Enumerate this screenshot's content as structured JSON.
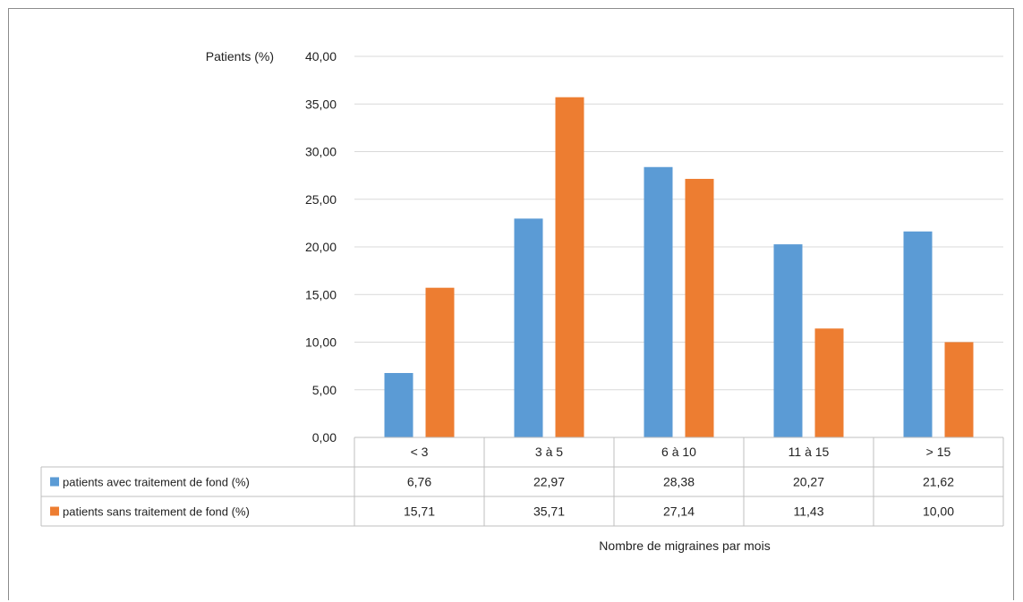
{
  "chart_data": {
    "type": "bar",
    "ylabel": "Patients (%)",
    "xlabel": "Nombre de migraines par mois",
    "categories": [
      "< 3",
      "3 à 5",
      "6 à 10",
      "11 à 15",
      "> 15"
    ],
    "ylim": [
      0,
      40
    ],
    "y_ticks": [
      "0,00",
      "5,00",
      "10,00",
      "15,00",
      "20,00",
      "25,00",
      "30,00",
      "35,00",
      "40,00"
    ],
    "grid": true,
    "legend": "data-table",
    "series": [
      {
        "name": "patients avec traitement de fond (%)",
        "color": "#5b9bd5",
        "values": [
          6.76,
          22.97,
          28.38,
          20.27,
          21.62
        ],
        "labels": [
          "6,76",
          "22,97",
          "28,38",
          "20,27",
          "21,62"
        ]
      },
      {
        "name": "patients sans traitement de fond (%)",
        "color": "#ed7d31",
        "values": [
          15.71,
          35.71,
          27.14,
          11.43,
          10.0
        ],
        "labels": [
          "15,71",
          "35,71",
          "27,14",
          "11,43",
          "10,00"
        ]
      }
    ]
  }
}
